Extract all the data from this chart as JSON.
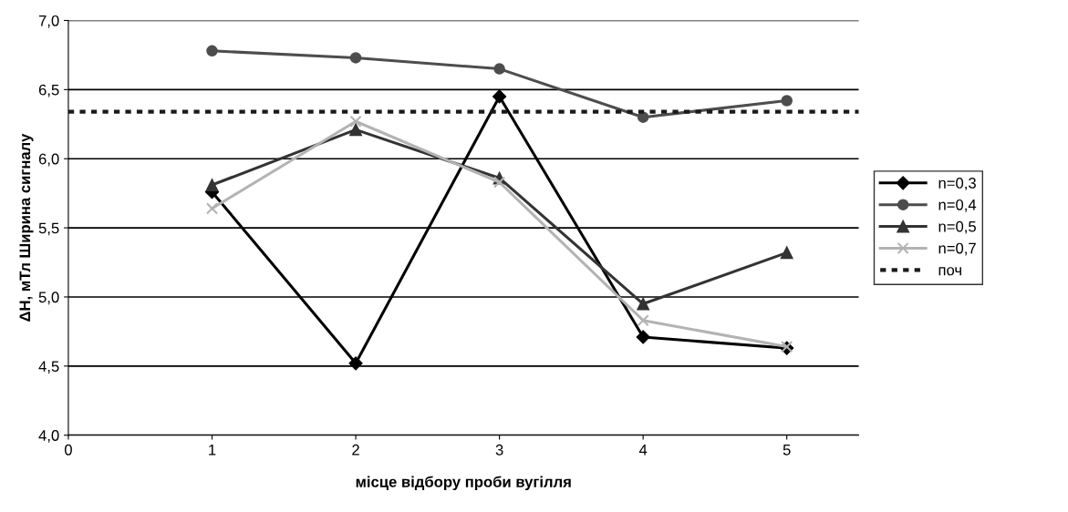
{
  "chart_data": {
    "type": "line",
    "xlabel": "місце відбору проби вугілля",
    "ylabel": "ΔH, мТл Ширина сигналу",
    "x": [
      1,
      2,
      3,
      4,
      5
    ],
    "series": [
      {
        "name": "n=0,3",
        "color": "#000000",
        "marker": "diamond",
        "values": [
          5.76,
          4.52,
          6.45,
          4.71,
          4.63
        ]
      },
      {
        "name": "n=0,4",
        "color": "#4d4d4d",
        "marker": "circle",
        "values": [
          6.78,
          6.73,
          6.65,
          6.3,
          6.42
        ]
      },
      {
        "name": "n=0,5",
        "color": "#333333",
        "marker": "triangle",
        "values": [
          5.81,
          6.21,
          5.86,
          4.95,
          5.32
        ]
      },
      {
        "name": "n=0,7",
        "color": "#b3b3b3",
        "marker": "cross",
        "values": [
          5.64,
          6.27,
          5.83,
          4.83,
          4.64
        ]
      },
      {
        "name": "поч",
        "color": "#1a1a1a",
        "marker": "none",
        "line_style": "dotted",
        "x": [
          0,
          5.5
        ],
        "values": [
          6.34,
          6.34
        ]
      }
    ],
    "xlim": [
      0,
      5.5
    ],
    "xticks": [
      0,
      1,
      2,
      3,
      4,
      5
    ],
    "ylim": [
      4.0,
      7.0
    ],
    "yticks": [
      {
        "value": 4.0,
        "label": "4,0"
      },
      {
        "value": 4.5,
        "label": "4,5"
      },
      {
        "value": 5.0,
        "label": "5,0"
      },
      {
        "value": 5.5,
        "label": "5,5"
      },
      {
        "value": 6.0,
        "label": "6,0"
      },
      {
        "value": 6.5,
        "label": "6,5"
      },
      {
        "value": 7.0,
        "label": "7,0"
      }
    ],
    "grid": "y",
    "legend": "right"
  }
}
